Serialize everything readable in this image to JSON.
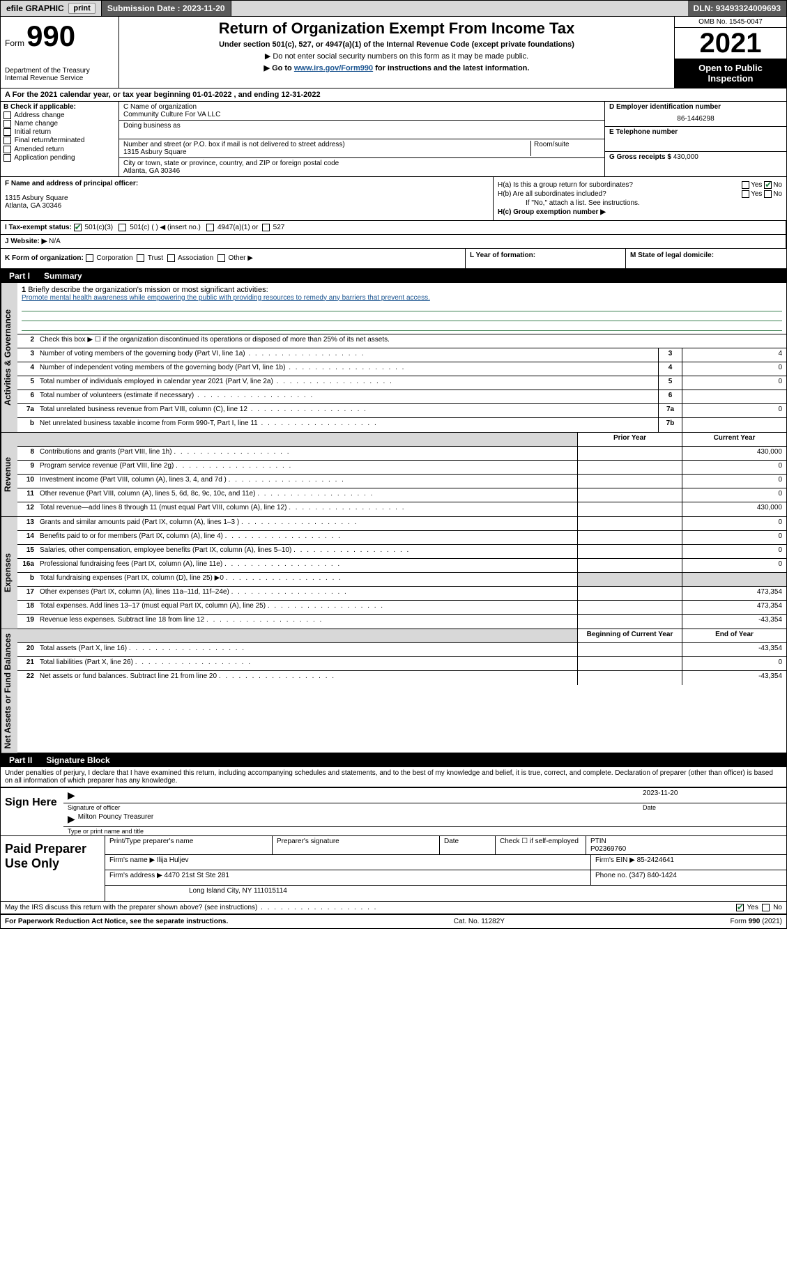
{
  "topbar": {
    "efile": "efile GRAPHIC",
    "print": "print",
    "sub_label": "Submission Date :",
    "sub_date": "2023-11-20",
    "dln_label": "DLN:",
    "dln": "93493324009693"
  },
  "header": {
    "form_word": "Form",
    "form_no": "990",
    "dept": "Department of the Treasury",
    "irs": "Internal Revenue Service",
    "title": "Return of Organization Exempt From Income Tax",
    "subtitle": "Under section 501(c), 527, or 4947(a)(1) of the Internal Revenue Code (except private foundations)",
    "note1": "▶ Do not enter social security numbers on this form as it may be made public.",
    "note2_pre": "▶ Go to ",
    "note2_link": "www.irs.gov/Form990",
    "note2_post": " for instructions and the latest information.",
    "omb": "OMB No. 1545-0047",
    "year": "2021",
    "open": "Open to Public Inspection"
  },
  "line_A": "For the 2021 calendar year, or tax year beginning 01-01-2022   , and ending 12-31-2022",
  "B": {
    "label": "B Check if applicable:",
    "opts": [
      "Address change",
      "Name change",
      "Initial return",
      "Final return/terminated",
      "Amended return",
      "Application pending"
    ]
  },
  "C": {
    "name_label": "C Name of organization",
    "name": "Community Culture For VA LLC",
    "dba_label": "Doing business as",
    "addr_label": "Number and street (or P.O. box if mail is not delivered to street address)",
    "room_label": "Room/suite",
    "addr": "1315 Asbury Square",
    "city_label": "City or town, state or province, country, and ZIP or foreign postal code",
    "city": "Atlanta, GA  30346"
  },
  "D": {
    "label": "D Employer identification number",
    "value": "86-1446298"
  },
  "E": {
    "label": "E Telephone number",
    "value": ""
  },
  "G": {
    "label": "G Gross receipts $",
    "value": "430,000"
  },
  "F": {
    "label": "F  Name and address of principal officer:",
    "line1": "1315 Asbury Square",
    "line2": "Atlanta, GA  30346"
  },
  "H": {
    "a": "H(a)  Is this a group return for subordinates?",
    "b": "H(b)  Are all subordinates included?",
    "b_note": "If \"No,\" attach a list. See instructions.",
    "c": "H(c)  Group exemption number ▶",
    "yes": "Yes",
    "no": "No"
  },
  "I": {
    "label": "I   Tax-exempt status:",
    "o1": "501(c)(3)",
    "o2": "501(c) (  ) ◀ (insert no.)",
    "o3": "4947(a)(1) or",
    "o4": "527"
  },
  "J": {
    "label": "J   Website: ▶",
    "value": "N/A"
  },
  "K": {
    "label": "K Form of organization:",
    "opts": [
      "Corporation",
      "Trust",
      "Association",
      "Other ▶"
    ]
  },
  "L": {
    "label": "L Year of formation:",
    "value": ""
  },
  "M": {
    "label": "M State of legal domicile:",
    "value": ""
  },
  "part1": {
    "num": "Part I",
    "title": "Summary"
  },
  "summary": {
    "side_gov": "Activities & Governance",
    "side_rev": "Revenue",
    "side_exp": "Expenses",
    "side_net": "Net Assets or Fund Balances",
    "l1": "Briefly describe the organization's mission or most significant activities:",
    "mission": "Promote mental health awareness while empowering the public with providing resources to remedy any barriers that prevent access.",
    "l2": "Check this box ▶ ☐  if the organization discontinued its operations or disposed of more than 25% of its net assets.",
    "rows_gov": [
      {
        "n": "3",
        "d": "Number of voting members of the governing body (Part VI, line 1a)",
        "box": "3",
        "v": "4"
      },
      {
        "n": "4",
        "d": "Number of independent voting members of the governing body (Part VI, line 1b)",
        "box": "4",
        "v": "0"
      },
      {
        "n": "5",
        "d": "Total number of individuals employed in calendar year 2021 (Part V, line 2a)",
        "box": "5",
        "v": "0"
      },
      {
        "n": "6",
        "d": "Total number of volunteers (estimate if necessary)",
        "box": "6",
        "v": ""
      },
      {
        "n": "7a",
        "d": "Total unrelated business revenue from Part VIII, column (C), line 12",
        "box": "7a",
        "v": "0"
      },
      {
        "n": "b",
        "d": "Net unrelated business taxable income from Form 990-T, Part I, line 11",
        "box": "7b",
        "v": ""
      }
    ],
    "col_prior": "Prior Year",
    "col_curr": "Current Year",
    "rows_rev": [
      {
        "n": "8",
        "d": "Contributions and grants (Part VIII, line 1h)",
        "p": "",
        "c": "430,000"
      },
      {
        "n": "9",
        "d": "Program service revenue (Part VIII, line 2g)",
        "p": "",
        "c": "0"
      },
      {
        "n": "10",
        "d": "Investment income (Part VIII, column (A), lines 3, 4, and 7d )",
        "p": "",
        "c": "0"
      },
      {
        "n": "11",
        "d": "Other revenue (Part VIII, column (A), lines 5, 6d, 8c, 9c, 10c, and 11e)",
        "p": "",
        "c": "0"
      },
      {
        "n": "12",
        "d": "Total revenue—add lines 8 through 11 (must equal Part VIII, column (A), line 12)",
        "p": "",
        "c": "430,000"
      }
    ],
    "rows_exp": [
      {
        "n": "13",
        "d": "Grants and similar amounts paid (Part IX, column (A), lines 1–3 )",
        "p": "",
        "c": "0"
      },
      {
        "n": "14",
        "d": "Benefits paid to or for members (Part IX, column (A), line 4)",
        "p": "",
        "c": "0"
      },
      {
        "n": "15",
        "d": "Salaries, other compensation, employee benefits (Part IX, column (A), lines 5–10)",
        "p": "",
        "c": "0"
      },
      {
        "n": "16a",
        "d": "Professional fundraising fees (Part IX, column (A), line 11e)",
        "p": "",
        "c": "0"
      },
      {
        "n": "b",
        "d": "Total fundraising expenses (Part IX, column (D), line 25) ▶0",
        "p": "grey",
        "c": "grey"
      },
      {
        "n": "17",
        "d": "Other expenses (Part IX, column (A), lines 11a–11d, 11f–24e)",
        "p": "",
        "c": "473,354"
      },
      {
        "n": "18",
        "d": "Total expenses. Add lines 13–17 (must equal Part IX, column (A), line 25)",
        "p": "",
        "c": "473,354"
      },
      {
        "n": "19",
        "d": "Revenue less expenses. Subtract line 18 from line 12",
        "p": "",
        "c": "-43,354"
      }
    ],
    "col_begin": "Beginning of Current Year",
    "col_end": "End of Year",
    "rows_net": [
      {
        "n": "20",
        "d": "Total assets (Part X, line 16)",
        "p": "",
        "c": "-43,354"
      },
      {
        "n": "21",
        "d": "Total liabilities (Part X, line 26)",
        "p": "",
        "c": "0"
      },
      {
        "n": "22",
        "d": "Net assets or fund balances. Subtract line 21 from line 20",
        "p": "",
        "c": "-43,354"
      }
    ]
  },
  "part2": {
    "num": "Part II",
    "title": "Signature Block"
  },
  "sig": {
    "decl": "Under penalties of perjury, I declare that I have examined this return, including accompanying schedules and statements, and to the best of my knowledge and belief, it is true, correct, and complete. Declaration of preparer (other than officer) is based on all information of which preparer has any knowledge.",
    "sign_here": "Sign Here",
    "sig_of_officer": "Signature of officer",
    "date_label": "Date",
    "date": "2023-11-20",
    "name_title": "Milton Pouncy  Treasurer",
    "name_under": "Type or print name and title"
  },
  "prep": {
    "label": "Paid Preparer Use Only",
    "h_name": "Print/Type preparer's name",
    "h_sig": "Preparer's signature",
    "h_date": "Date",
    "h_check": "Check ☐ if self-employed",
    "h_ptin": "PTIN",
    "ptin": "P02369760",
    "firm_name_l": "Firm's name   ▶",
    "firm_name": "Ilija Huljev",
    "firm_ein_l": "Firm's EIN ▶",
    "firm_ein": "85-2424641",
    "firm_addr_l": "Firm's address ▶",
    "firm_addr1": "4470 21st St Ste 281",
    "firm_addr2": "Long Island City, NY  111015114",
    "phone_l": "Phone no.",
    "phone": "(347) 840-1424"
  },
  "may_discuss": "May the IRS discuss this return with the preparer shown above? (see instructions)",
  "footer": {
    "pra": "For Paperwork Reduction Act Notice, see the separate instructions.",
    "cat": "Cat. No. 11282Y",
    "form": "Form 990 (2021)"
  },
  "colors": {
    "grey": "#d8d8d8",
    "darkgrey": "#5a5a5a",
    "link": "#1a5490",
    "check": "#1a7a3a"
  }
}
